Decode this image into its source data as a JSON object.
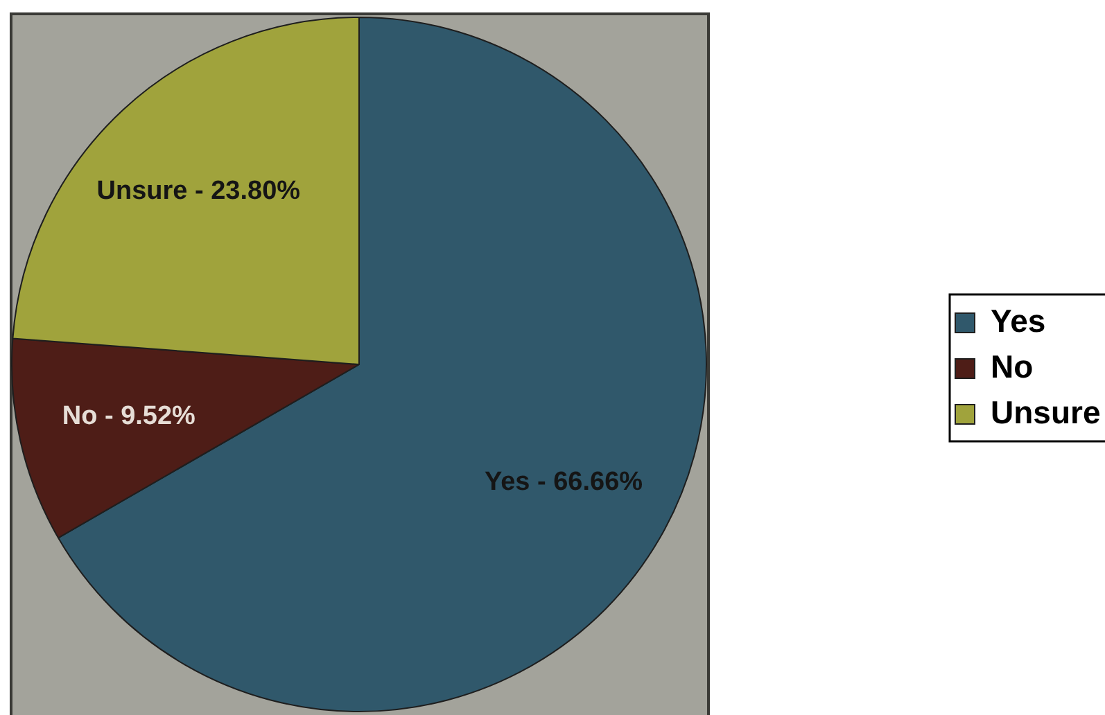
{
  "chart_data": {
    "type": "pie",
    "categories": [
      "Yes",
      "No",
      "Unsure"
    ],
    "values": [
      66.66,
      9.52,
      23.8
    ],
    "colors": [
      "#30586b",
      "#4e1d17",
      "#a0a33c"
    ],
    "value_labels": [
      "Yes ‐ 66.66%",
      "No ‐ 9.52%",
      "Unsure ‐ 23.80%"
    ],
    "legend": "right"
  }
}
